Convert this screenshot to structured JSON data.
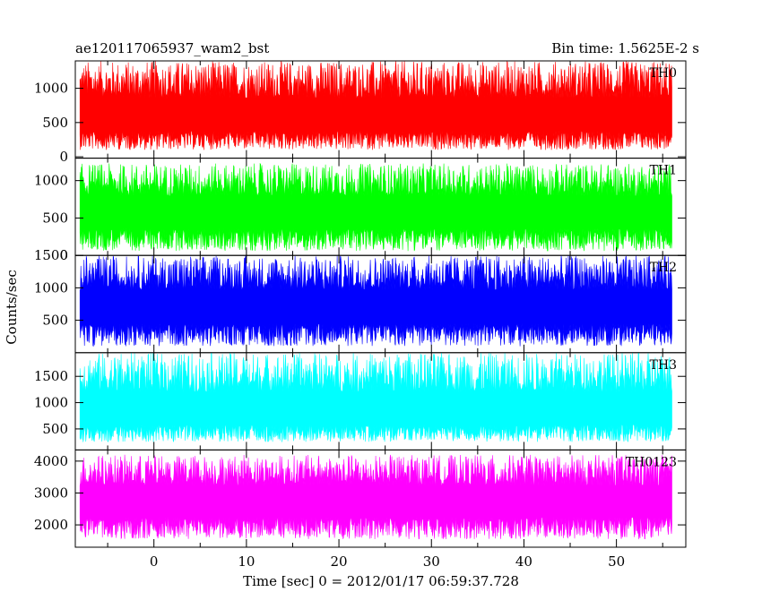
{
  "chart_data": {
    "type": "line",
    "title_left": "ae120117065937_wam2_bst",
    "title_right": "Bin time: 1.5625E-2 s",
    "xlabel": "Time [sec] 0 = 2012/01/17 06:59:37.728",
    "ylabel": "Counts/sec",
    "xlim": [
      -8.5,
      57.5
    ],
    "x_data_range": [
      -8.0,
      56.0
    ],
    "x_ticks": [
      0,
      10,
      20,
      30,
      40,
      50
    ],
    "grid": false,
    "panels": [
      {
        "name": "TH0",
        "color": "#ff0000",
        "ylim": [
          -20,
          1400
        ],
        "y_ticks": [
          0,
          500,
          1000
        ],
        "mean": 560,
        "low": 100,
        "high": 1400
      },
      {
        "name": "TH1",
        "color": "#00ff00",
        "ylim": [
          0,
          1300
        ],
        "y_ticks": [
          0,
          500,
          1000
        ],
        "mean": 560,
        "low": 60,
        "high": 1230
      },
      {
        "name": "TH2",
        "color": "#0000ff",
        "ylim": [
          0,
          1500
        ],
        "y_ticks": [
          500,
          1000,
          1500
        ],
        "mean": 680,
        "low": 100,
        "high": 1500
      },
      {
        "name": "TH3",
        "color": "#00ffff",
        "ylim": [
          100,
          1950
        ],
        "y_ticks": [
          500,
          1000,
          1500
        ],
        "mean": 800,
        "low": 250,
        "high": 1950
      },
      {
        "name": "TH0123",
        "color": "#ff00ff",
        "ylim": [
          1300,
          4350
        ],
        "y_ticks": [
          2000,
          3000,
          4000
        ],
        "mean": 2700,
        "low": 1550,
        "high": 4200
      }
    ]
  }
}
